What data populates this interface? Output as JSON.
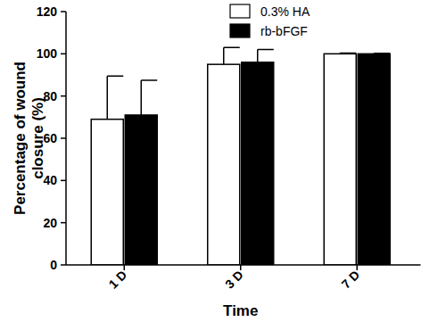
{
  "chart_data": {
    "type": "bar",
    "categories": [
      "1 D",
      "3 D",
      "7 D"
    ],
    "series": [
      {
        "name": "0.3% HA",
        "color": "#ffffff",
        "values": [
          69,
          95,
          100
        ],
        "errors": [
          20.5,
          8,
          0.3
        ]
      },
      {
        "name": "rb-bFGF",
        "color": "#000000",
        "values": [
          71,
          96,
          100
        ],
        "errors": [
          16.5,
          6,
          0.2
        ]
      }
    ],
    "x_label": "Time",
    "y_label": "Percentage of wound closure (%)",
    "ylim": [
      0,
      120
    ],
    "yticks": [
      0,
      20,
      40,
      60,
      80,
      100,
      120
    ],
    "legend": "top",
    "grid": false
  }
}
